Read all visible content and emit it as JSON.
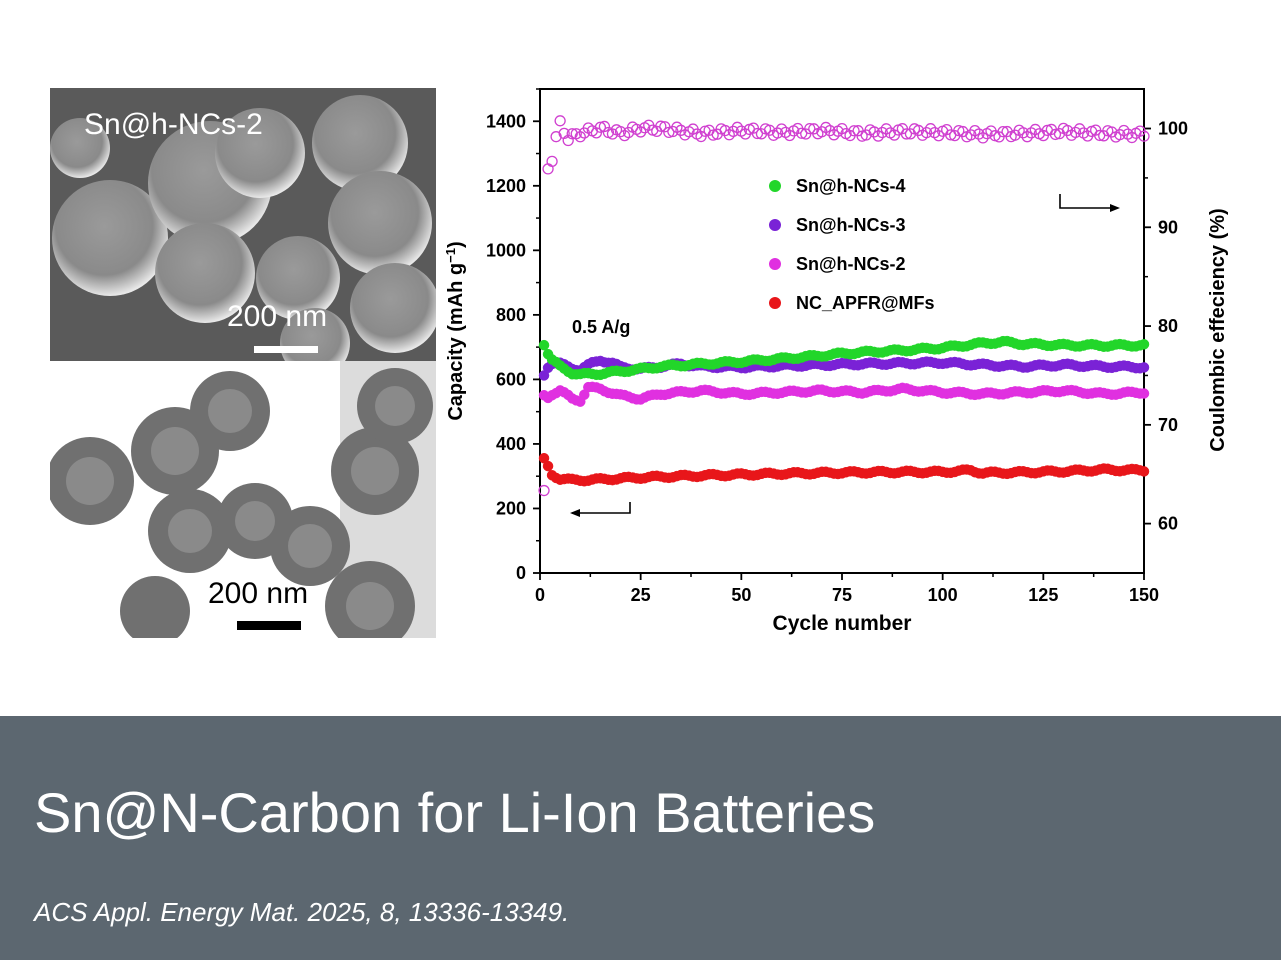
{
  "images": {
    "sem_top": {
      "sample_label": "Sn@h-NCs-2",
      "scale_text": "200 nm"
    },
    "sem_bottom": {
      "scale_text": "200 nm"
    }
  },
  "banner": {
    "title": "Sn@N-Carbon for Li-Ion Batteries",
    "citation": "ACS Appl. Energy Mat. 2025, 8, 13336-13349.",
    "background_color": "#5c6770"
  },
  "chart_data": {
    "type": "scatter",
    "xlabel": "Cycle number",
    "ylabel_left": "Capacity (mAh g",
    "ylabel_left_sup": "−1",
    "ylabel_left_close": ")",
    "ylabel_right": "Coulombic effeciency (%)",
    "annotation": "0.5 A/g",
    "xlim": [
      0,
      150
    ],
    "ylim_left": [
      0,
      1500
    ],
    "ylim_right": [
      55,
      104
    ],
    "x_ticks": [
      "0",
      "25",
      "50",
      "75",
      "100",
      "125",
      "150"
    ],
    "y_left_ticks": [
      "0",
      "200",
      "400",
      "600",
      "800",
      "1000",
      "1200",
      "1400"
    ],
    "y_right_ticks": [
      "60",
      "70",
      "80",
      "90",
      "100"
    ],
    "legend": [
      "Sn@h-NCs-4",
      "Sn@h-NCs-3",
      "Sn@h-NCs-2",
      "NC_APFR@MFs"
    ],
    "colors": {
      "Sn@h-NCs-4": "#22d62a",
      "Sn@h-NCs-3": "#7a22d6",
      "Sn@h-NCs-2": "#e030e0",
      "NC_APFR@MFs": "#e8161a",
      "ce": "#d040d0"
    },
    "series": [
      {
        "name": "Sn@h-NCs-4",
        "axis": "left",
        "x": [
          1,
          2,
          3,
          5,
          8,
          10,
          15,
          20,
          25,
          30,
          40,
          50,
          60,
          70,
          75,
          80,
          90,
          100,
          110,
          115,
          120,
          130,
          140,
          150
        ],
        "y": [
          710,
          680,
          660,
          640,
          620,
          615,
          618,
          625,
          632,
          640,
          648,
          655,
          664,
          674,
          680,
          684,
          690,
          698,
          712,
          716,
          710,
          706,
          705,
          706
        ]
      },
      {
        "name": "Sn@h-NCs-3",
        "axis": "left",
        "x": [
          1,
          2,
          3,
          5,
          8,
          10,
          13,
          15,
          18,
          20,
          25,
          30,
          35,
          40,
          50,
          60,
          70,
          80,
          90,
          100,
          110,
          120,
          130,
          140,
          150
        ],
        "y": [
          615,
          640,
          650,
          648,
          635,
          630,
          650,
          660,
          650,
          638,
          632,
          640,
          648,
          640,
          638,
          642,
          645,
          648,
          650,
          652,
          645,
          640,
          645,
          640,
          638
        ]
      },
      {
        "name": "Sn@h-NCs-2",
        "axis": "left",
        "x": [
          1,
          2,
          3,
          5,
          8,
          10,
          12,
          15,
          20,
          25,
          30,
          35,
          40,
          50,
          60,
          70,
          80,
          90,
          100,
          110,
          120,
          130,
          140,
          150
        ],
        "y": [
          550,
          545,
          555,
          565,
          540,
          535,
          575,
          570,
          550,
          540,
          555,
          560,
          565,
          555,
          560,
          565,
          560,
          570,
          560,
          555,
          560,
          565,
          555,
          560
        ]
      },
      {
        "name": "NC_APFR@MFs",
        "axis": "left",
        "x": [
          1,
          2,
          3,
          5,
          8,
          10,
          15,
          20,
          25,
          30,
          40,
          50,
          60,
          70,
          80,
          90,
          100,
          107,
          110,
          120,
          130,
          140,
          150
        ],
        "y": [
          352,
          330,
          305,
          292,
          288,
          288,
          290,
          293,
          296,
          298,
          302,
          305,
          308,
          310,
          312,
          313,
          313,
          318,
          310,
          312,
          315,
          320,
          318
        ]
      },
      {
        "name": "Coulombic efficiency",
        "axis": "right",
        "x": [
          1,
          2,
          3,
          4,
          5,
          7,
          10,
          15,
          20,
          25,
          30,
          40,
          50,
          60,
          70,
          80,
          90,
          100,
          110,
          120,
          130,
          140,
          150
        ],
        "y": [
          63,
          96,
          97,
          99,
          100.5,
          99,
          99.5,
          100,
          99.5,
          100,
          100,
          99.5,
          99.8,
          99.6,
          99.8,
          99.5,
          99.7,
          99.6,
          99.4,
          99.5,
          99.7,
          99.5,
          99.4
        ]
      }
    ]
  }
}
